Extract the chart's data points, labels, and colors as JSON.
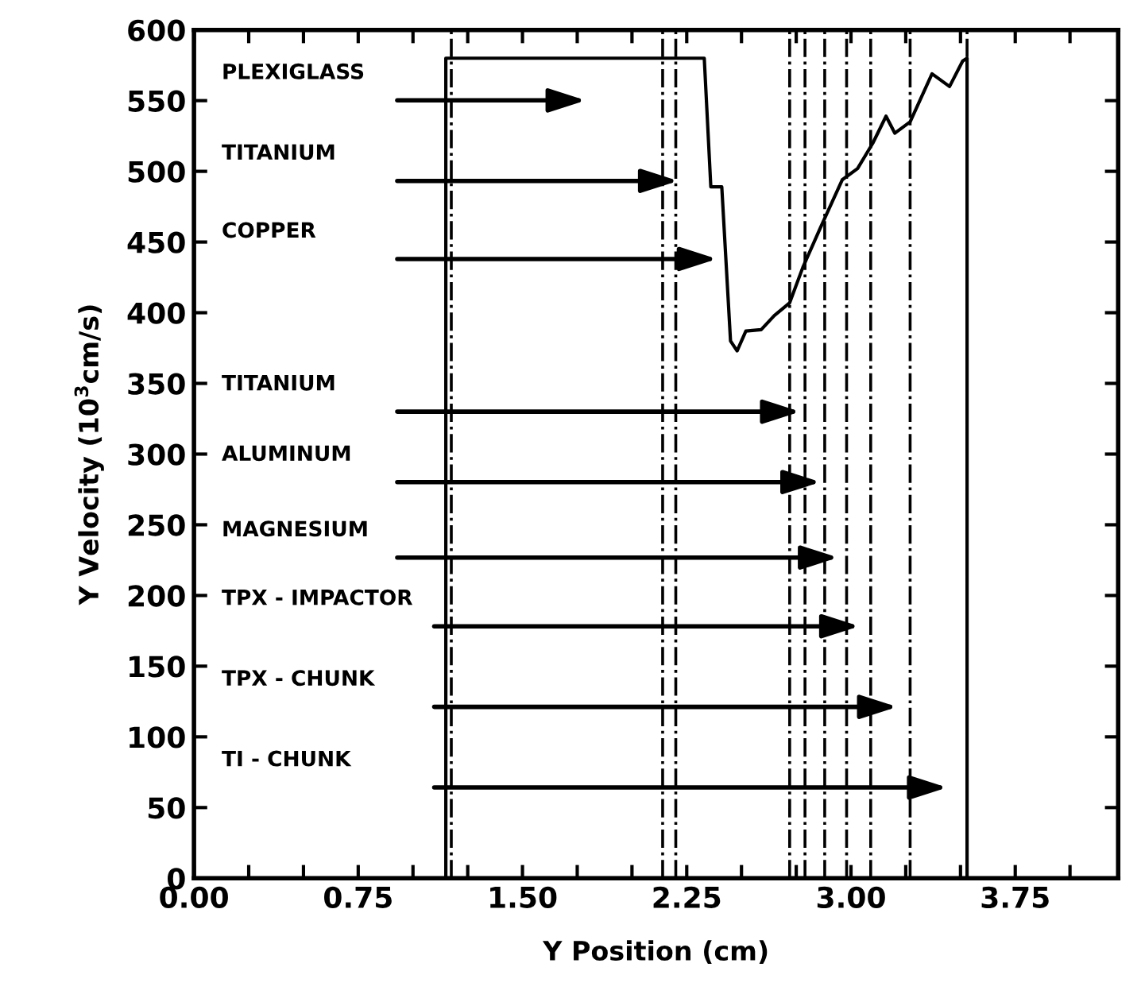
{
  "chart_data": {
    "type": "line",
    "xlabel": "Y Position (cm)",
    "ylabel": "Y Velocity (10$^{3}$cm/s)",
    "x": [
      1.15,
      1.15,
      2.33,
      2.36,
      2.41,
      2.45,
      2.48,
      2.52,
      2.59,
      2.65,
      2.72,
      2.78,
      2.86,
      2.96,
      3.03,
      3.1,
      3.16,
      3.2,
      3.27,
      3.37,
      3.45,
      3.51,
      3.53,
      3.53
    ],
    "series": [
      {
        "color": "#000000",
        "values": [
          0,
          580,
          580,
          489,
          489,
          380,
          373,
          387,
          388,
          398,
          407,
          432,
          460,
          494,
          502,
          520,
          539,
          527,
          535,
          569,
          560,
          578,
          580,
          0
        ]
      }
    ],
    "xlim": [
      0,
      4.22
    ],
    "ylim": [
      0,
      600
    ],
    "xticks": [
      {
        "value": 0,
        "label": "0.00"
      },
      {
        "value": 0.25,
        "label": null
      },
      {
        "value": 0.5,
        "label": null
      },
      {
        "value": 0.75,
        "label": "0.75"
      },
      {
        "value": 1.0,
        "label": null
      },
      {
        "value": 1.25,
        "label": null
      },
      {
        "value": 1.5,
        "label": "1.50"
      },
      {
        "value": 1.75,
        "label": null
      },
      {
        "value": 2.0,
        "label": null
      },
      {
        "value": 2.25,
        "label": "2.25"
      },
      {
        "value": 2.5,
        "label": null
      },
      {
        "value": 2.75,
        "label": null
      },
      {
        "value": 3.0,
        "label": "3.00"
      },
      {
        "value": 3.25,
        "label": null
      },
      {
        "value": 3.5,
        "label": null
      },
      {
        "value": 3.75,
        "label": "3.75"
      },
      {
        "value": 4.0,
        "label": null
      }
    ],
    "yticks": [
      0,
      50,
      100,
      150,
      200,
      250,
      300,
      350,
      400,
      450,
      500,
      550,
      600
    ],
    "grid": false,
    "legend": false,
    "marker": "none",
    "line_style": "solid",
    "ref_lines": [
      {
        "axis": "x",
        "value": 1.175,
        "color": "#000000",
        "line_style": "dashdot"
      },
      {
        "axis": "x",
        "value": 2.14,
        "color": "#000000",
        "line_style": "dashdot"
      },
      {
        "axis": "x",
        "value": 2.2,
        "color": "#000000",
        "line_style": "dashdot"
      },
      {
        "axis": "x",
        "value": 2.72,
        "color": "#000000",
        "line_style": "dashdot"
      },
      {
        "axis": "x",
        "value": 2.79,
        "color": "#000000",
        "line_style": "dashdot"
      },
      {
        "axis": "x",
        "value": 2.88,
        "color": "#000000",
        "line_style": "dashdot"
      },
      {
        "axis": "x",
        "value": 2.98,
        "color": "#000000",
        "line_style": "dashdot"
      },
      {
        "axis": "x",
        "value": 3.09,
        "color": "#000000",
        "line_style": "dashdot"
      },
      {
        "axis": "x",
        "value": 3.27,
        "color": "#000000",
        "line_style": "dashdot"
      },
      {
        "axis": "x",
        "value": 3.53,
        "color": "#000000",
        "line_style": "dashdot"
      }
    ],
    "annotations": [
      "PLEXIGLASS",
      "TITANIUM",
      "COPPER",
      "TITANIUM",
      "ALUMINUM",
      "MAGNESIUM",
      "TPX - IMPACTOR",
      "TPX - CHUNK",
      "TI - CHUNK"
    ]
  }
}
